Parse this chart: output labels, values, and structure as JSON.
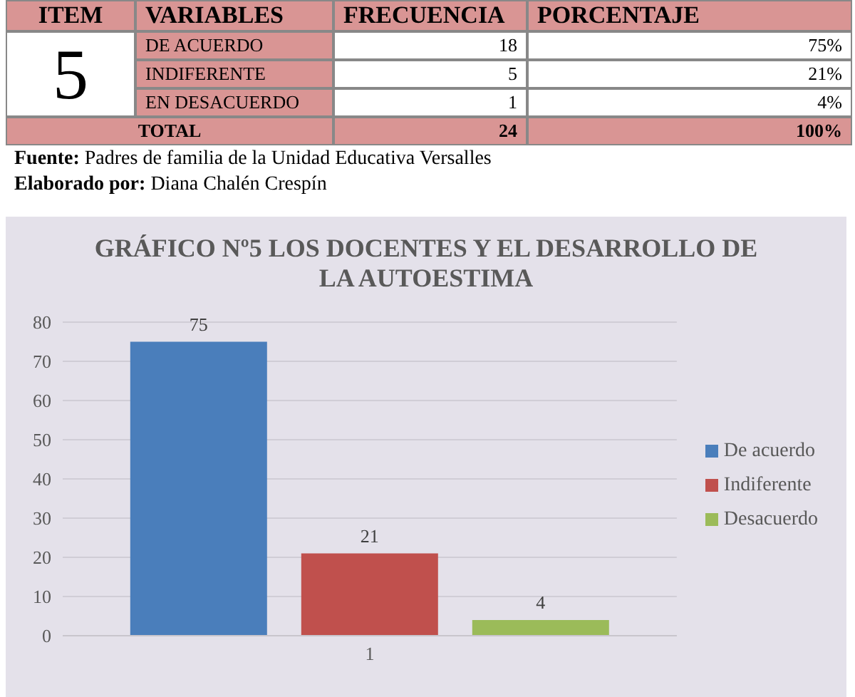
{
  "chart_data": [
    {
      "type": "other",
      "annotations": [
        "ITEM",
        "VARIABLES",
        "FRECUENCIA",
        "PORCENTAJE",
        "5",
        "DE ACUERDO",
        "18",
        "75%",
        "INDIFERENTE",
        "5",
        "21%",
        "EN DESACUERDO",
        "1",
        "4%",
        "TOTAL",
        "24",
        "100%",
        "Fuente: Padres de familia de la Unidad Educativa Versalles",
        "Elaborado por: Diana Chalén Crespín"
      ]
    },
    {
      "type": "bar",
      "title": "GRÁFICO Nº5 LOS DOCENTES Y EL DESARROLLO DE LA AUTOESTIMA",
      "categories": [
        "1"
      ],
      "series": [
        {
          "name": "De acuerdo",
          "color": "#4a7ebb",
          "values": [
            75
          ]
        },
        {
          "name": "Indiferente",
          "color": "#c0504d",
          "values": [
            21
          ]
        },
        {
          "name": "Desacuerdo",
          "color": "#9bbb59",
          "values": [
            4
          ]
        }
      ],
      "ylim": [
        0,
        80
      ],
      "yticks": [
        0,
        10,
        20,
        30,
        40,
        50,
        60,
        70,
        80
      ],
      "grid": "y",
      "legend": "right",
      "data_labels": true
    }
  ]
}
